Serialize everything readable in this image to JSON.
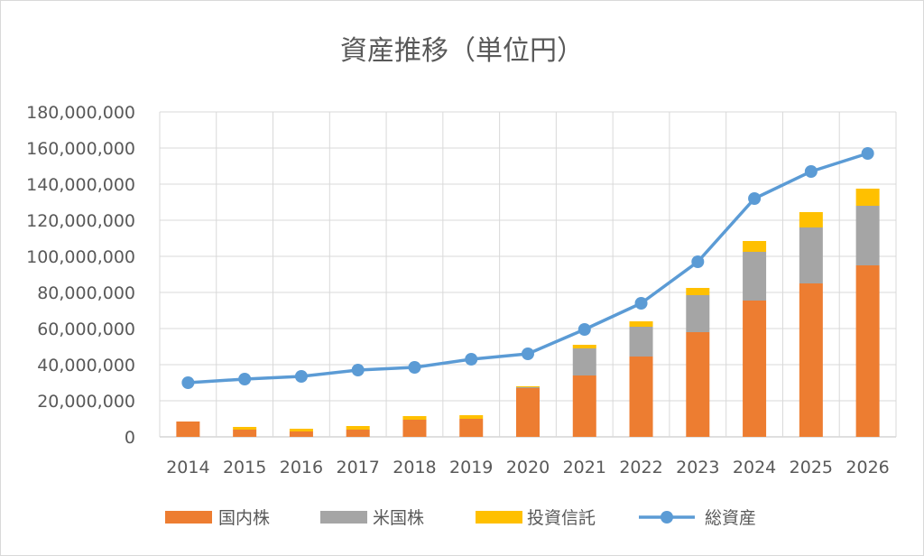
{
  "chart_data": {
    "type": "bar",
    "stacked": true,
    "title": "資産推移（単位円）",
    "categories": [
      "2014",
      "2015",
      "2016",
      "2017",
      "2018",
      "2019",
      "2020",
      "2021",
      "2022",
      "2023",
      "2024",
      "2025",
      "2026"
    ],
    "ylim": [
      0,
      180000000
    ],
    "yticks": [
      0,
      20000000,
      40000000,
      60000000,
      80000000,
      100000000,
      120000000,
      140000000,
      160000000,
      180000000
    ],
    "ytick_labels": [
      "0",
      "20,000,000",
      "40,000,000",
      "60,000,000",
      "80,000,000",
      "100,000,000",
      "120,000,000",
      "140,000,000",
      "160,000,000",
      "180,000,000"
    ],
    "grid": true,
    "legend_position": "bottom",
    "series": [
      {
        "name": "国内株",
        "kind": "bar",
        "color": "#ED7D31",
        "values": [
          8500000,
          4000000,
          3000000,
          4000000,
          9500000,
          10000000,
          27000000,
          34000000,
          44500000,
          58000000,
          75500000,
          85000000,
          95000000
        ]
      },
      {
        "name": "米国株",
        "kind": "bar",
        "color": "#A5A5A5",
        "values": [
          0,
          0,
          0,
          0,
          0,
          0,
          500000,
          15000000,
          16500000,
          20500000,
          27000000,
          31000000,
          33000000
        ]
      },
      {
        "name": "投資信託",
        "kind": "bar",
        "color": "#FFC000",
        "values": [
          0,
          1500000,
          1500000,
          2000000,
          2000000,
          2000000,
          500000,
          2000000,
          3000000,
          4000000,
          6000000,
          8500000,
          9500000
        ]
      },
      {
        "name": "総資産",
        "kind": "line",
        "color": "#5B9BD5",
        "values": [
          30000000,
          32000000,
          33500000,
          37000000,
          38500000,
          43000000,
          46000000,
          59500000,
          74000000,
          97000000,
          132000000,
          147000000,
          157000000
        ]
      }
    ]
  }
}
